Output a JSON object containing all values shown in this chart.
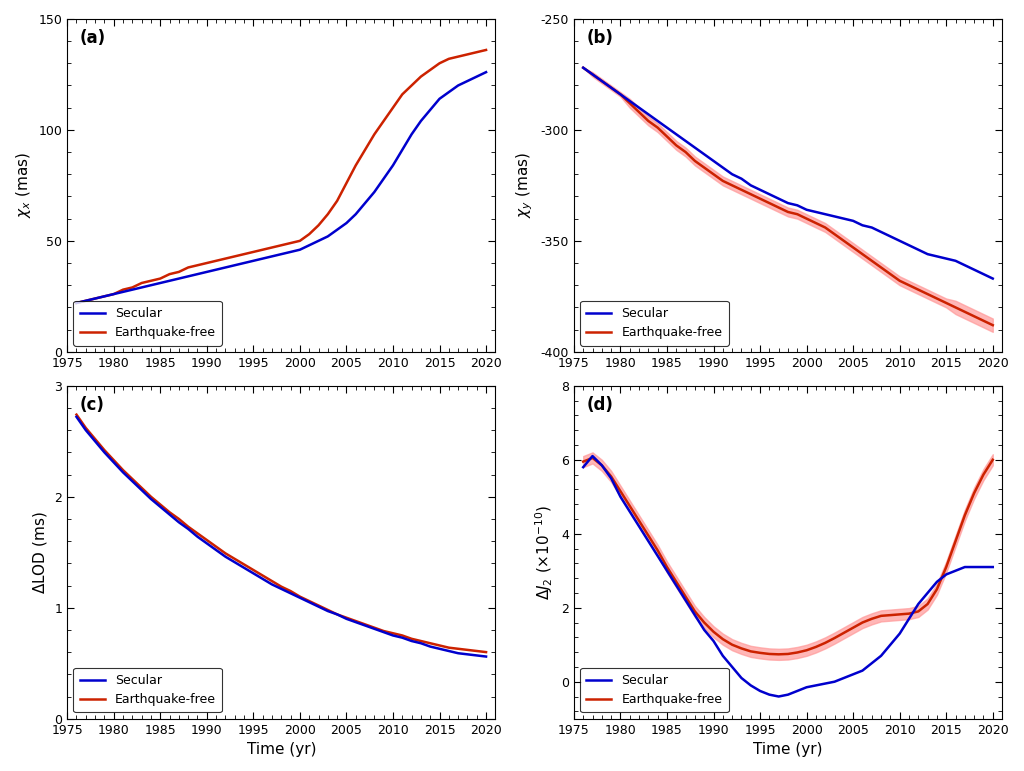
{
  "time_start": 1976,
  "time_end": 2021,
  "blue_color": "#0000CD",
  "red_color": "#CC2200",
  "red_fill_color": "#FF9999",
  "background_color": "#ffffff",
  "panel_a": {
    "label": "(a)",
    "ylabel": "$\\chi_x$ (mas)",
    "ylim": [
      0,
      150
    ],
    "yticks": [
      0,
      50,
      100,
      150
    ],
    "secular": {
      "x": [
        1976,
        1977,
        1978,
        1979,
        1980,
        1981,
        1982,
        1983,
        1984,
        1985,
        1986,
        1987,
        1988,
        1989,
        1990,
        1991,
        1992,
        1993,
        1994,
        1995,
        1996,
        1997,
        1998,
        1999,
        2000,
        2001,
        2002,
        2003,
        2004,
        2005,
        2006,
        2007,
        2008,
        2009,
        2010,
        2011,
        2012,
        2013,
        2014,
        2015,
        2016,
        2017,
        2018,
        2019,
        2020
      ],
      "y": [
        22,
        23,
        24,
        25,
        26,
        27,
        28,
        29,
        30,
        31,
        32,
        33,
        34,
        35,
        36,
        37,
        38,
        39,
        40,
        41,
        42,
        43,
        44,
        45,
        46,
        48,
        50,
        52,
        55,
        58,
        62,
        67,
        72,
        78,
        84,
        91,
        98,
        104,
        109,
        114,
        117,
        120,
        122,
        124,
        126
      ]
    },
    "eq_free": {
      "x": [
        1976,
        1977,
        1978,
        1979,
        1980,
        1981,
        1982,
        1983,
        1984,
        1985,
        1986,
        1987,
        1988,
        1989,
        1990,
        1991,
        1992,
        1993,
        1994,
        1995,
        1996,
        1997,
        1998,
        1999,
        2000,
        2001,
        2002,
        2003,
        2004,
        2005,
        2006,
        2007,
        2008,
        2009,
        2010,
        2011,
        2012,
        2013,
        2014,
        2015,
        2016,
        2017,
        2018,
        2019,
        2020
      ],
      "y": [
        22,
        23,
        24,
        25,
        26,
        28,
        29,
        31,
        32,
        33,
        35,
        36,
        38,
        39,
        40,
        41,
        42,
        43,
        44,
        45,
        46,
        47,
        48,
        49,
        50,
        53,
        57,
        62,
        68,
        76,
        84,
        91,
        98,
        104,
        110,
        116,
        120,
        124,
        127,
        130,
        132,
        133,
        134,
        135,
        136
      ]
    }
  },
  "panel_b": {
    "label": "(b)",
    "ylabel": "$\\chi_y$ (mas)",
    "ylim": [
      -400,
      -250
    ],
    "yticks": [
      -400,
      -350,
      -300,
      -250
    ],
    "secular": {
      "x": [
        1976,
        1977,
        1978,
        1979,
        1980,
        1981,
        1982,
        1983,
        1984,
        1985,
        1986,
        1987,
        1988,
        1989,
        1990,
        1991,
        1992,
        1993,
        1994,
        1995,
        1996,
        1997,
        1998,
        1999,
        2000,
        2001,
        2002,
        2003,
        2004,
        2005,
        2006,
        2007,
        2008,
        2009,
        2010,
        2011,
        2012,
        2013,
        2014,
        2015,
        2016,
        2017,
        2018,
        2019,
        2020
      ],
      "y": [
        -272,
        -275,
        -278,
        -281,
        -284,
        -287,
        -290,
        -293,
        -296,
        -299,
        -302,
        -305,
        -308,
        -311,
        -314,
        -317,
        -320,
        -322,
        -325,
        -327,
        -329,
        -331,
        -333,
        -334,
        -336,
        -337,
        -338,
        -339,
        -340,
        -341,
        -343,
        -344,
        -346,
        -348,
        -350,
        -352,
        -354,
        -356,
        -357,
        -358,
        -359,
        -361,
        -363,
        -365,
        -367
      ]
    },
    "eq_free_mean": {
      "x": [
        1976,
        1977,
        1978,
        1979,
        1980,
        1981,
        1982,
        1983,
        1984,
        1985,
        1986,
        1987,
        1988,
        1989,
        1990,
        1991,
        1992,
        1993,
        1994,
        1995,
        1996,
        1997,
        1998,
        1999,
        2000,
        2001,
        2002,
        2003,
        2004,
        2005,
        2006,
        2007,
        2008,
        2009,
        2010,
        2011,
        2012,
        2013,
        2014,
        2015,
        2016,
        2017,
        2018,
        2019,
        2020
      ],
      "y": [
        -272,
        -275,
        -278,
        -281,
        -284,
        -288,
        -292,
        -296,
        -299,
        -303,
        -307,
        -310,
        -314,
        -317,
        -320,
        -323,
        -325,
        -327,
        -329,
        -331,
        -333,
        -335,
        -337,
        -338,
        -340,
        -342,
        -344,
        -347,
        -350,
        -353,
        -356,
        -359,
        -362,
        -365,
        -368,
        -370,
        -372,
        -374,
        -376,
        -378,
        -380,
        -382,
        -384,
        -386,
        -388
      ]
    },
    "eq_free_upper": {
      "x": [
        1976,
        1977,
        1978,
        1979,
        1980,
        1981,
        1982,
        1983,
        1984,
        1985,
        1986,
        1987,
        1988,
        1989,
        1990,
        1991,
        1992,
        1993,
        1994,
        1995,
        1996,
        1997,
        1998,
        1999,
        2000,
        2001,
        2002,
        2003,
        2004,
        2005,
        2006,
        2007,
        2008,
        2009,
        2010,
        2011,
        2012,
        2013,
        2014,
        2015,
        2016,
        2017,
        2018,
        2019,
        2020
      ],
      "y": [
        -272,
        -274,
        -277,
        -280,
        -283,
        -286,
        -290,
        -294,
        -297,
        -301,
        -305,
        -308,
        -312,
        -315,
        -318,
        -321,
        -323,
        -325,
        -327,
        -329,
        -331,
        -333,
        -335,
        -336,
        -338,
        -340,
        -342,
        -345,
        -348,
        -351,
        -354,
        -357,
        -360,
        -363,
        -366,
        -368,
        -370,
        -372,
        -374,
        -376,
        -377,
        -379,
        -381,
        -383,
        -385
      ]
    },
    "eq_free_lower": {
      "x": [
        1976,
        1977,
        1978,
        1979,
        1980,
        1981,
        1982,
        1983,
        1984,
        1985,
        1986,
        1987,
        1988,
        1989,
        1990,
        1991,
        1992,
        1993,
        1994,
        1995,
        1996,
        1997,
        1998,
        1999,
        2000,
        2001,
        2002,
        2003,
        2004,
        2005,
        2006,
        2007,
        2008,
        2009,
        2010,
        2011,
        2012,
        2013,
        2014,
        2015,
        2016,
        2017,
        2018,
        2019,
        2020
      ],
      "y": [
        -272,
        -276,
        -279,
        -282,
        -285,
        -290,
        -294,
        -298,
        -301,
        -305,
        -309,
        -312,
        -316,
        -319,
        -322,
        -325,
        -327,
        -329,
        -331,
        -333,
        -335,
        -337,
        -339,
        -340,
        -342,
        -344,
        -346,
        -349,
        -352,
        -355,
        -358,
        -361,
        -364,
        -367,
        -370,
        -372,
        -374,
        -376,
        -378,
        -380,
        -383,
        -385,
        -387,
        -389,
        -391
      ]
    }
  },
  "panel_c": {
    "label": "(c)",
    "ylabel": "$\\Delta$LOD (ms)",
    "ylim": [
      0,
      3
    ],
    "yticks": [
      0,
      1,
      2,
      3
    ],
    "secular": {
      "x": [
        1976,
        1977,
        1978,
        1979,
        1980,
        1981,
        1982,
        1983,
        1984,
        1985,
        1986,
        1987,
        1988,
        1989,
        1990,
        1991,
        1992,
        1993,
        1994,
        1995,
        1996,
        1997,
        1998,
        1999,
        2000,
        2001,
        2002,
        2003,
        2004,
        2005,
        2006,
        2007,
        2008,
        2009,
        2010,
        2011,
        2012,
        2013,
        2014,
        2015,
        2016,
        2017,
        2018,
        2019,
        2020
      ],
      "y": [
        2.72,
        2.6,
        2.5,
        2.4,
        2.31,
        2.22,
        2.14,
        2.06,
        1.98,
        1.91,
        1.84,
        1.77,
        1.71,
        1.64,
        1.58,
        1.52,
        1.46,
        1.41,
        1.36,
        1.31,
        1.26,
        1.21,
        1.17,
        1.13,
        1.09,
        1.05,
        1.01,
        0.97,
        0.94,
        0.9,
        0.87,
        0.84,
        0.81,
        0.78,
        0.75,
        0.73,
        0.7,
        0.68,
        0.65,
        0.63,
        0.61,
        0.59,
        0.58,
        0.57,
        0.56
      ]
    },
    "eq_free": {
      "x": [
        1976,
        1977,
        1978,
        1979,
        1980,
        1981,
        1982,
        1983,
        1984,
        1985,
        1986,
        1987,
        1988,
        1989,
        1990,
        1991,
        1992,
        1993,
        1994,
        1995,
        1996,
        1997,
        1998,
        1999,
        2000,
        2001,
        2002,
        2003,
        2004,
        2005,
        2006,
        2007,
        2008,
        2009,
        2010,
        2011,
        2012,
        2013,
        2014,
        2015,
        2016,
        2017,
        2018,
        2019,
        2020
      ],
      "y": [
        2.74,
        2.62,
        2.52,
        2.42,
        2.33,
        2.24,
        2.16,
        2.08,
        2.0,
        1.93,
        1.86,
        1.8,
        1.73,
        1.67,
        1.61,
        1.55,
        1.49,
        1.44,
        1.39,
        1.34,
        1.29,
        1.24,
        1.19,
        1.15,
        1.1,
        1.06,
        1.02,
        0.98,
        0.94,
        0.91,
        0.88,
        0.85,
        0.82,
        0.79,
        0.77,
        0.75,
        0.72,
        0.7,
        0.68,
        0.66,
        0.64,
        0.63,
        0.62,
        0.61,
        0.6
      ]
    }
  },
  "panel_d": {
    "label": "(d)",
    "ylabel": "$\\Delta J_2$ ($\\times$10$^{-10}$)",
    "ylim": [
      -1,
      8
    ],
    "yticks": [
      0,
      2,
      4,
      6,
      8
    ],
    "secular": {
      "x": [
        1976,
        1977,
        1978,
        1979,
        1980,
        1981,
        1982,
        1983,
        1984,
        1985,
        1986,
        1987,
        1988,
        1989,
        1990,
        1991,
        1992,
        1993,
        1994,
        1995,
        1996,
        1997,
        1998,
        1999,
        2000,
        2001,
        2002,
        2003,
        2004,
        2005,
        2006,
        2007,
        2008,
        2009,
        2010,
        2011,
        2012,
        2013,
        2014,
        2015,
        2016,
        2017,
        2018,
        2019,
        2020
      ],
      "y": [
        5.8,
        6.1,
        5.85,
        5.5,
        5.0,
        4.6,
        4.2,
        3.8,
        3.4,
        3.0,
        2.6,
        2.2,
        1.8,
        1.4,
        1.1,
        0.7,
        0.4,
        0.1,
        -0.1,
        -0.25,
        -0.35,
        -0.4,
        -0.35,
        -0.25,
        -0.15,
        -0.1,
        -0.05,
        0.0,
        0.1,
        0.2,
        0.3,
        0.5,
        0.7,
        1.0,
        1.3,
        1.7,
        2.1,
        2.4,
        2.7,
        2.9,
        3.0,
        3.1,
        3.1,
        3.1,
        3.1
      ]
    },
    "eq_free_mean": {
      "x": [
        1976,
        1977,
        1978,
        1979,
        1980,
        1981,
        1982,
        1983,
        1984,
        1985,
        1986,
        1987,
        1988,
        1989,
        1990,
        1991,
        1992,
        1993,
        1994,
        1995,
        1996,
        1997,
        1998,
        1999,
        2000,
        2001,
        2002,
        2003,
        2004,
        2005,
        2006,
        2007,
        2008,
        2009,
        2010,
        2011,
        2012,
        2013,
        2014,
        2015,
        2016,
        2017,
        2018,
        2019,
        2020
      ],
      "y": [
        5.95,
        6.05,
        5.85,
        5.55,
        5.15,
        4.75,
        4.35,
        3.95,
        3.55,
        3.1,
        2.7,
        2.3,
        1.9,
        1.6,
        1.35,
        1.15,
        1.0,
        0.9,
        0.82,
        0.78,
        0.75,
        0.74,
        0.75,
        0.79,
        0.85,
        0.94,
        1.05,
        1.18,
        1.32,
        1.46,
        1.6,
        1.7,
        1.78,
        1.8,
        1.82,
        1.84,
        1.9,
        2.1,
        2.5,
        3.1,
        3.8,
        4.5,
        5.1,
        5.6,
        6.0
      ]
    },
    "eq_free_upper": {
      "x": [
        1976,
        1977,
        1978,
        1979,
        1980,
        1981,
        1982,
        1983,
        1984,
        1985,
        1986,
        1987,
        1988,
        1989,
        1990,
        1991,
        1992,
        1993,
        1994,
        1995,
        1996,
        1997,
        1998,
        1999,
        2000,
        2001,
        2002,
        2003,
        2004,
        2005,
        2006,
        2007,
        2008,
        2009,
        2010,
        2011,
        2012,
        2013,
        2014,
        2015,
        2016,
        2017,
        2018,
        2019,
        2020
      ],
      "y": [
        6.1,
        6.2,
        6.0,
        5.7,
        5.3,
        4.9,
        4.5,
        4.1,
        3.7,
        3.25,
        2.85,
        2.45,
        2.05,
        1.75,
        1.5,
        1.3,
        1.15,
        1.05,
        0.97,
        0.93,
        0.9,
        0.89,
        0.9,
        0.94,
        1.0,
        1.09,
        1.2,
        1.33,
        1.47,
        1.61,
        1.75,
        1.85,
        1.93,
        1.95,
        1.97,
        1.99,
        2.05,
        2.25,
        2.65,
        3.25,
        3.95,
        4.65,
        5.25,
        5.75,
        6.15
      ]
    },
    "eq_free_lower": {
      "x": [
        1976,
        1977,
        1978,
        1979,
        1980,
        1981,
        1982,
        1983,
        1984,
        1985,
        1986,
        1987,
        1988,
        1989,
        1990,
        1991,
        1992,
        1993,
        1994,
        1995,
        1996,
        1997,
        1998,
        1999,
        2000,
        2001,
        2002,
        2003,
        2004,
        2005,
        2006,
        2007,
        2008,
        2009,
        2010,
        2011,
        2012,
        2013,
        2014,
        2015,
        2016,
        2017,
        2018,
        2019,
        2020
      ],
      "y": [
        5.8,
        5.9,
        5.7,
        5.4,
        5.0,
        4.6,
        4.2,
        3.8,
        3.4,
        2.95,
        2.55,
        2.15,
        1.75,
        1.45,
        1.2,
        1.0,
        0.85,
        0.75,
        0.67,
        0.63,
        0.6,
        0.59,
        0.6,
        0.64,
        0.7,
        0.79,
        0.9,
        1.03,
        1.17,
        1.31,
        1.45,
        1.55,
        1.63,
        1.65,
        1.67,
        1.69,
        1.75,
        1.95,
        2.35,
        2.95,
        3.65,
        4.35,
        4.95,
        5.45,
        5.85
      ]
    }
  },
  "xticks": [
    1975,
    1980,
    1985,
    1990,
    1995,
    2000,
    2005,
    2010,
    2015,
    2020
  ],
  "xlim": [
    1975,
    2021
  ],
  "xlabel": "Time (yr)",
  "legend_secular": "Secular",
  "legend_eq_free": "Earthquake-free"
}
